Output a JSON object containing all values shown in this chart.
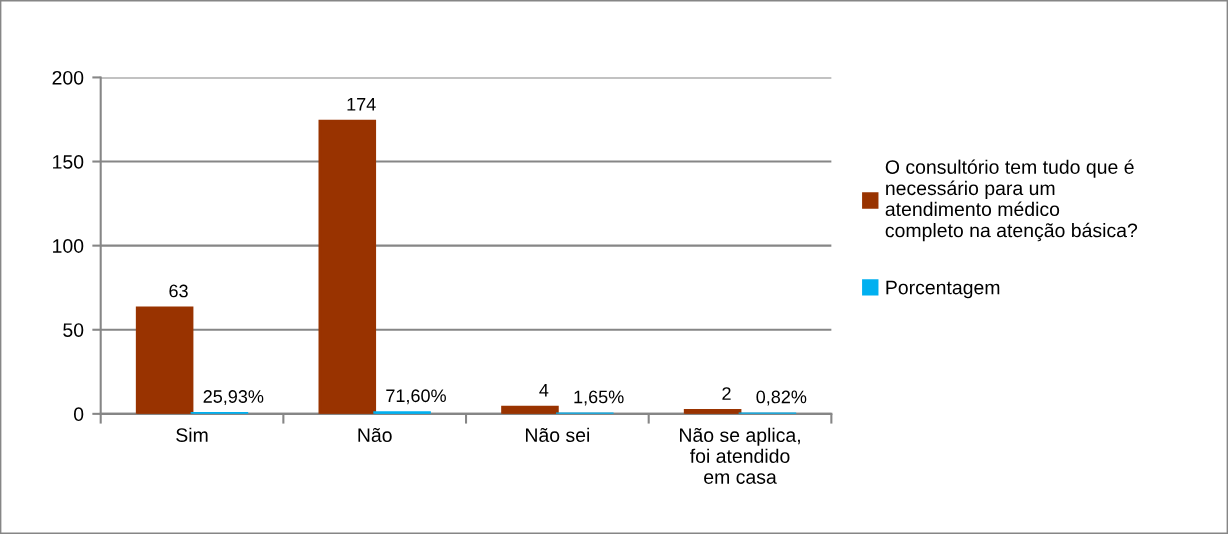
{
  "chart_data": {
    "type": "bar",
    "categories": [
      "Sim",
      "Não",
      "Não sei",
      "Não se aplica,\nfoi atendido\nem casa"
    ],
    "series": [
      {
        "name": "O consultório tem tudo que é\nnecessário para um\natendimento médico\ncompleto na atenção básica?",
        "color": "#993300",
        "values": [
          63,
          174,
          4,
          2
        ],
        "value_labels": [
          "63",
          "174",
          "4",
          "2"
        ]
      },
      {
        "name": "Porcentagem",
        "color": "#00b0f0",
        "values": [
          0.2593,
          0.716,
          0.0165,
          0.0082
        ],
        "value_labels": [
          "25,93%",
          "71,60%",
          "1,65%",
          "0,82%"
        ]
      }
    ],
    "ylim": [
      0,
      200
    ],
    "yticks": [
      0,
      50,
      100,
      150,
      200
    ],
    "grid": "y",
    "legend": "right"
  }
}
